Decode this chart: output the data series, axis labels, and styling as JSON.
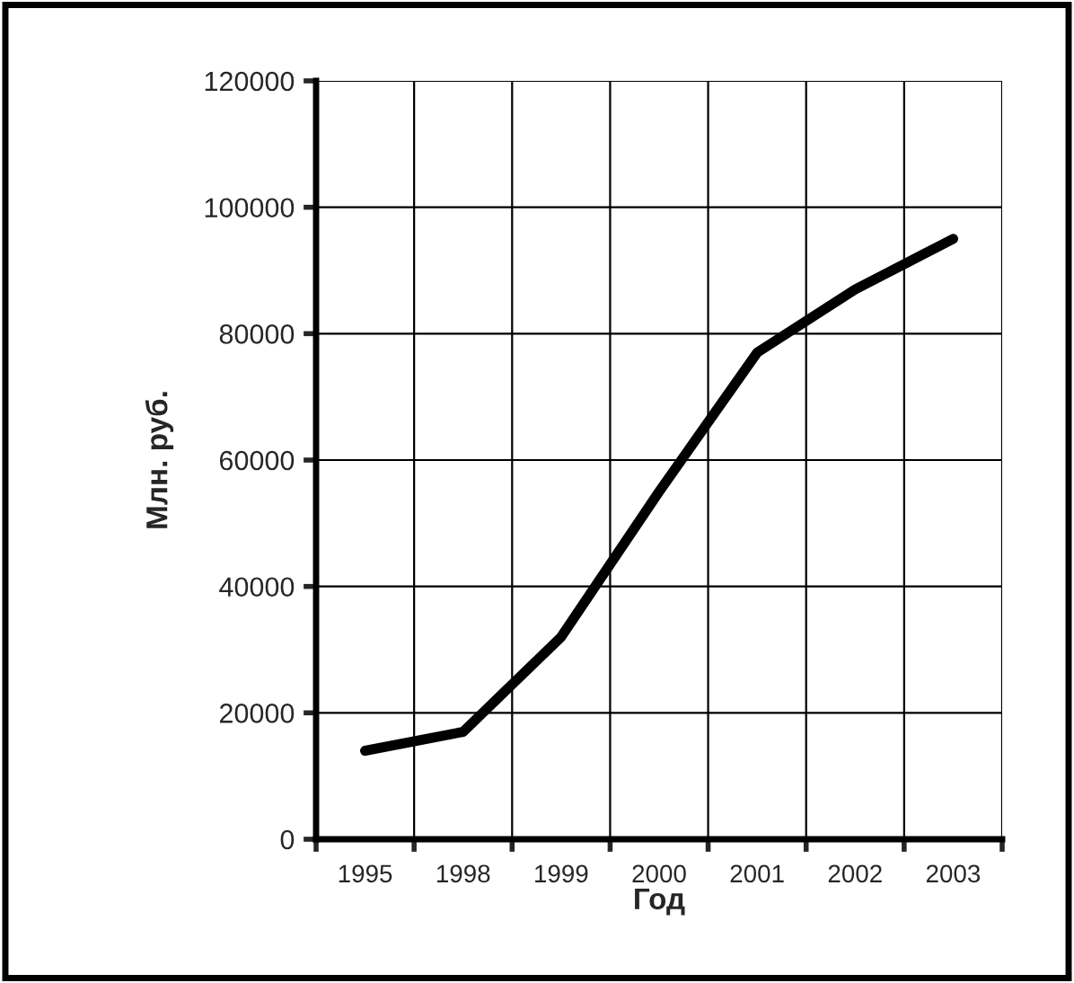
{
  "chart_data": {
    "type": "line",
    "xlabel": "Год",
    "ylabel": "Млн. руб.",
    "categories": [
      "1995",
      "1998",
      "1999",
      "2000",
      "2001",
      "2002",
      "2003"
    ],
    "series": [
      {
        "color": "#000000",
        "values": [
          14000,
          17000,
          32000,
          55000,
          77000,
          87000,
          95000
        ]
      }
    ],
    "ylim": [
      0,
      120000
    ],
    "yticks": [
      0,
      20000,
      40000,
      60000,
      80000,
      100000,
      120000
    ],
    "grid": true,
    "marker": "none",
    "line_style": "solid"
  }
}
